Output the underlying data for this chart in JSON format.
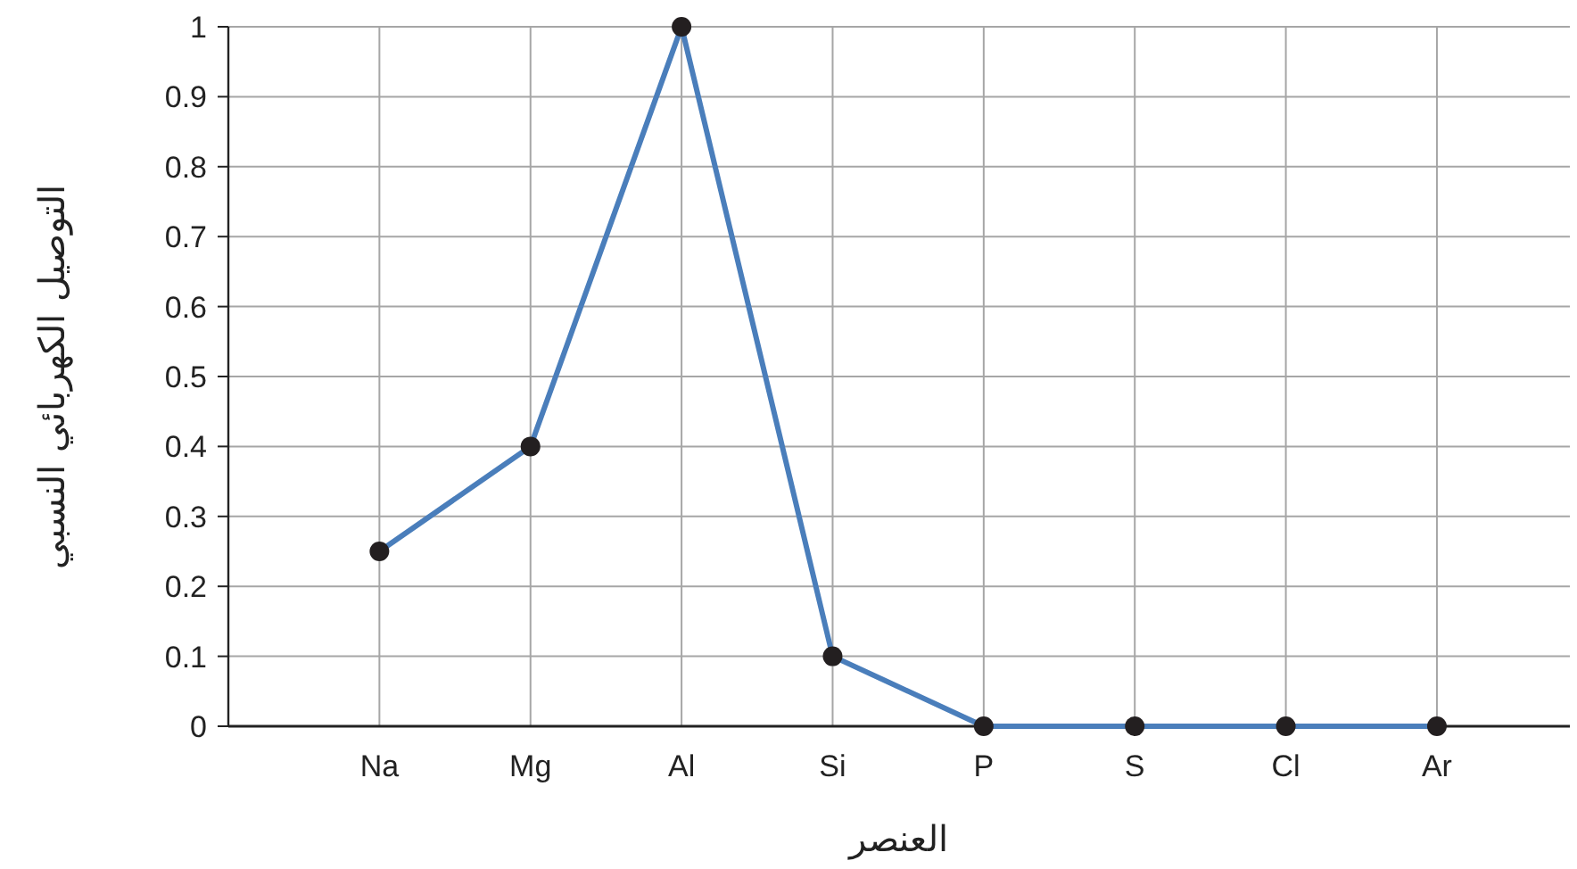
{
  "chart_data": {
    "type": "line",
    "xlabel": "العنصر",
    "ylabel": "التوصيل الكهربائي النسبي",
    "categories": [
      "Na",
      "Mg",
      "Al",
      "Si",
      "P",
      "S",
      "Cl",
      "Ar"
    ],
    "series": [
      {
        "color": "#4a7ebb",
        "values": [
          0.25,
          0.4,
          1,
          0.1,
          0,
          0,
          0,
          0
        ]
      }
    ],
    "marker": "circle",
    "ylim": [
      0,
      1
    ],
    "yticks": [
      0,
      0.1,
      0.2,
      0.3,
      0.4,
      0.5,
      0.6,
      0.7,
      0.8,
      0.9,
      1
    ],
    "grid": true
  }
}
